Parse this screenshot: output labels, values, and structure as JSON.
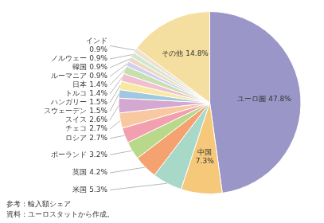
{
  "chart_data": {
    "type": "pie",
    "categories": [
      "ユーロ圏",
      "中国",
      "米国",
      "英国",
      "ポーランド",
      "ロシア",
      "チェコ",
      "スイス",
      "スウェーデン",
      "ハンガリー",
      "トルコ",
      "日本",
      "ルーマニア",
      "韓国",
      "ノルウェー",
      "インド",
      "その他"
    ],
    "values": [
      47.8,
      7.3,
      5.3,
      4.2,
      3.2,
      2.7,
      2.7,
      2.6,
      1.5,
      1.5,
      1.4,
      1.4,
      0.9,
      0.9,
      0.9,
      0.9,
      14.8
    ],
    "value_labels": [
      "ユーロ圏 47.8%",
      "中国\n7.3%",
      "米国 5.3%",
      "英国 4.2%",
      "ポーランド 3.2%",
      "ロシア 2.7%",
      "チェコ 2.7%",
      "スイス 2.6%",
      "スウェーデン 1.5%",
      "ハンガリー 1.5%",
      "トルコ 1.4%",
      "日本 1.4%",
      "ルーマニア 0.9%",
      "韓国 0.9%",
      "ノルウェー 0.9%",
      "インド\n0.9%",
      "その他 14.8%"
    ],
    "colors": [
      "#9b96c8",
      "#f5c87a",
      "#a8d8c8",
      "#f4a270",
      "#b8d88a",
      "#f2a0b0",
      "#f8c8a0",
      "#d4a8d0",
      "#a0c8e0",
      "#f8e8a0",
      "#f0c0d0",
      "#c8e0b0",
      "#d0d0f0",
      "#f0d8c0",
      "#d0e8d0",
      "#f0e0d0",
      "#f5dfa0"
    ],
    "data_labels": true,
    "annotations": [
      "参考：輸入額シェア",
      "資料：ユーロスタットから作成。"
    ]
  }
}
